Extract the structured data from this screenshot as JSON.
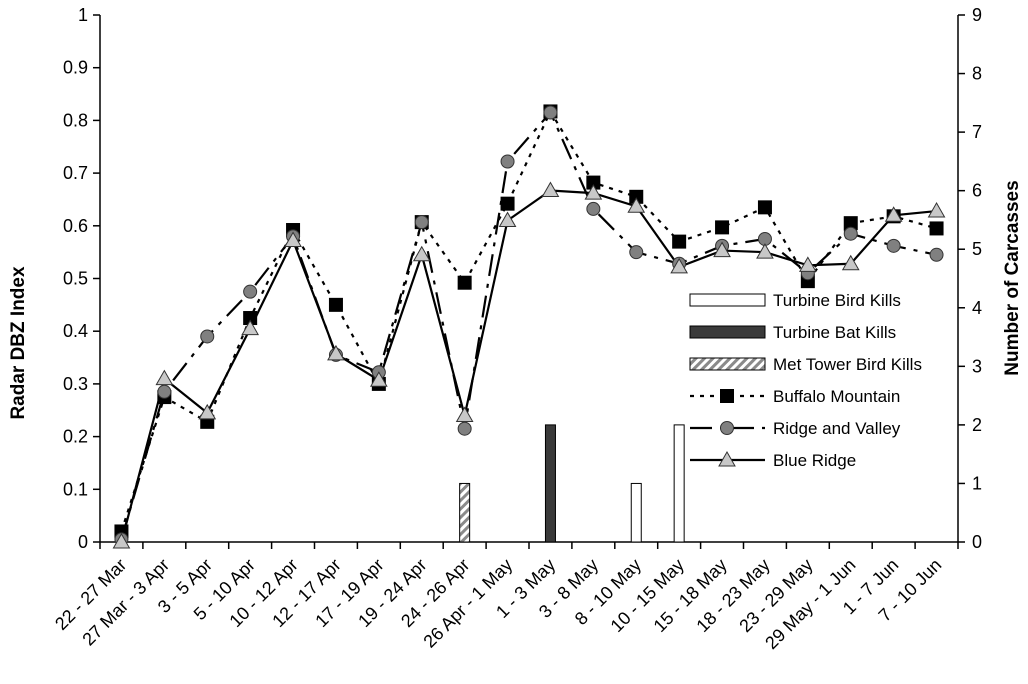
{
  "chart_data": {
    "type": "line",
    "categories": [
      "22 - 27 Mar",
      "27 Mar - 3 Apr",
      "3 - 5 Apr",
      "5 - 10 Apr",
      "10 - 12 Apr",
      "12 - 17 Apr",
      "17 - 19 Apr",
      "19 - 24 Apr",
      "24 - 26 Apr",
      "26 Apr - 1 May",
      "1 - 3 May",
      "3 - 8 May",
      "8 - 10 May",
      "10 - 15 May",
      "15 - 18 May",
      "18 - 23 May",
      "23 - 29 May",
      "29 May - 1 Jun",
      "1 - 7 Jun",
      "7 - 10 Jun"
    ],
    "ylabel": "Radar DBZ Index",
    "y2label": "Number of Carcasses",
    "ylim": [
      0,
      1
    ],
    "y2lim": [
      0,
      9
    ],
    "yticks": [
      "0",
      "0.1",
      "0.2",
      "0.3",
      "0.4",
      "0.5",
      "0.6",
      "0.7",
      "0.8",
      "0.9",
      "1"
    ],
    "y2ticks": [
      "0",
      "1",
      "2",
      "3",
      "4",
      "5",
      "6",
      "7",
      "8",
      "9"
    ],
    "legend_position": "right",
    "series": [
      {
        "name": "Turbine Bird Kills",
        "kind": "bar",
        "axis": "right",
        "fill": "#ffffff",
        "values": [
          null,
          null,
          null,
          null,
          null,
          null,
          null,
          null,
          null,
          null,
          null,
          null,
          1,
          2,
          null,
          null,
          null,
          null,
          null,
          null
        ],
        "offsets": [
          0,
          0,
          0,
          0,
          0,
          0,
          0,
          0,
          0,
          0,
          0,
          0,
          0,
          0,
          0,
          0,
          0,
          0,
          0,
          0
        ]
      },
      {
        "name": "Turbine Bat Kills",
        "kind": "bar",
        "axis": "right",
        "fill": "#3a3a3a",
        "values": [
          null,
          null,
          null,
          null,
          null,
          null,
          null,
          null,
          null,
          null,
          2,
          null,
          null,
          null,
          null,
          null,
          null,
          null,
          null,
          null
        ],
        "offsets": [
          0,
          0,
          0,
          0,
          0,
          0,
          0,
          0,
          0,
          0,
          0,
          0,
          0,
          0,
          0,
          0,
          0,
          0,
          0,
          0
        ]
      },
      {
        "name": "Met Tower Bird Kills",
        "kind": "bar",
        "axis": "right",
        "fill": "hatch",
        "values": [
          null,
          null,
          null,
          null,
          null,
          null,
          null,
          null,
          1,
          null,
          null,
          null,
          null,
          null,
          null,
          null,
          null,
          null,
          null,
          null
        ],
        "offsets": [
          0,
          0,
          0,
          0,
          0,
          0,
          0,
          0,
          0,
          0,
          0,
          0,
          0,
          0,
          0,
          0,
          0,
          0,
          0,
          0
        ]
      },
      {
        "name": "Buffalo Mountain",
        "kind": "line",
        "axis": "left",
        "marker": "square",
        "dash": "4,6",
        "values": [
          0.02,
          0.275,
          0.228,
          0.425,
          0.592,
          0.45,
          0.3,
          0.607,
          0.492,
          0.642,
          0.817,
          0.682,
          0.655,
          0.57,
          0.597,
          0.635,
          0.495,
          0.605,
          0.618,
          0.595
        ]
      },
      {
        "name": "Ridge and Valley",
        "kind": "line",
        "axis": "left",
        "marker": "circle",
        "dash": "22,8,4,8",
        "values": [
          0.005,
          0.285,
          0.39,
          0.475,
          0.58,
          0.355,
          0.322,
          0.607,
          0.215,
          0.722,
          0.815,
          0.632,
          0.55,
          0.528,
          0.562,
          0.575,
          0.51,
          0.585,
          0.562,
          0.545
        ]
      },
      {
        "name": "Blue Ridge",
        "kind": "line",
        "axis": "left",
        "marker": "triangle",
        "dash": "",
        "values": [
          0.0,
          0.31,
          0.245,
          0.405,
          0.572,
          0.357,
          0.307,
          0.545,
          0.24,
          0.61,
          0.667,
          0.662,
          0.637,
          0.522,
          0.553,
          0.55,
          0.525,
          0.528,
          0.62,
          0.628
        ]
      }
    ]
  }
}
